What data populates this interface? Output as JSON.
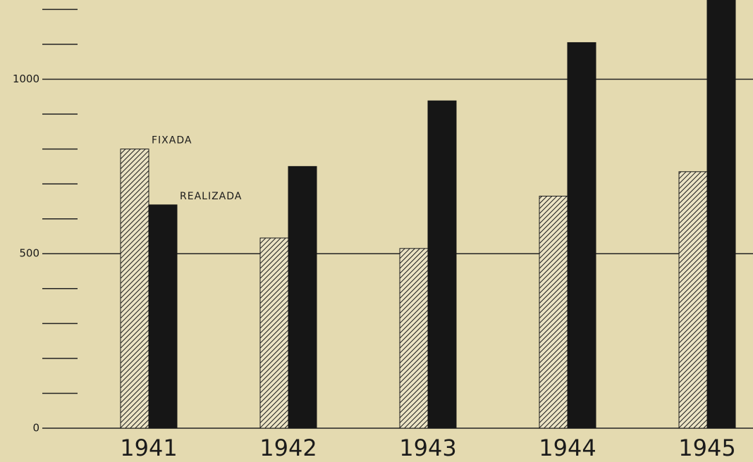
{
  "chart_data": {
    "type": "bar",
    "categories": [
      "1941",
      "1942",
      "1943",
      "1944",
      "1945"
    ],
    "series": [
      {
        "name": "FIXADA",
        "color": "#1a1a1a",
        "hatch": true,
        "values": [
          800,
          545,
          515,
          665,
          735
        ]
      },
      {
        "name": "REALIZADA",
        "color": "#161616",
        "hatch": false,
        "values": [
          640,
          750,
          938,
          1105,
          1250
        ]
      }
    ],
    "ylim": [
      0,
      1227
    ],
    "yticks": [
      0,
      500,
      1000
    ],
    "yticks_minor": [
      100,
      200,
      300,
      400,
      600,
      700,
      800,
      900,
      1100,
      1200
    ],
    "grid": true
  }
}
